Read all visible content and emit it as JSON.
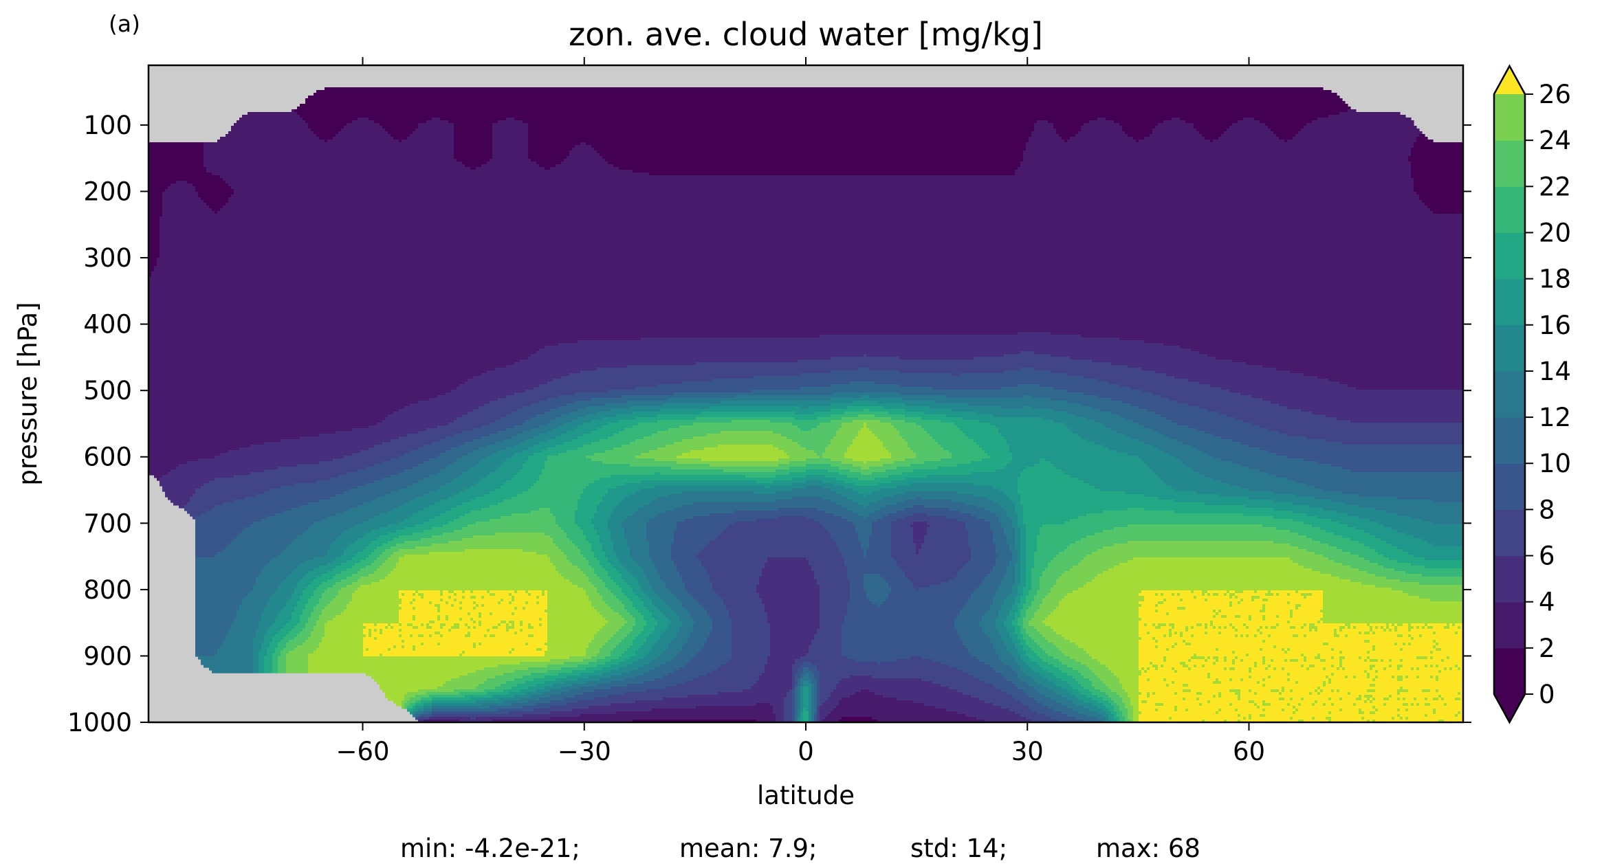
{
  "panel_label": "(a)",
  "chart_data": {
    "type": "heatmap",
    "subtype": "filled-contour",
    "title": "zon. ave. cloud water [mg/kg]",
    "xlabel": "latitude",
    "ylabel": "pressure [hPa]",
    "xlim": [
      -89,
      89
    ],
    "ylim": [
      1000,
      10
    ],
    "x_ticks": [
      -60,
      -30,
      0,
      30,
      60
    ],
    "x_tick_labels": [
      "−60",
      "−30",
      "0",
      "30",
      "60"
    ],
    "y_ticks": [
      100,
      200,
      300,
      400,
      500,
      600,
      700,
      800,
      900,
      1000
    ],
    "y_tick_labels": [
      "100",
      "200",
      "300",
      "400",
      "500",
      "600",
      "700",
      "800",
      "900",
      "1000"
    ],
    "colorbar": {
      "levels": [
        0,
        2,
        4,
        6,
        8,
        10,
        12,
        14,
        16,
        18,
        20,
        22,
        24,
        26
      ],
      "tick_labels": [
        "0",
        "2",
        "4",
        "6",
        "8",
        "10",
        "12",
        "14",
        "16",
        "18",
        "20",
        "22",
        "24",
        "26"
      ],
      "extend": "both",
      "colors": [
        "#440154",
        "#481a6c",
        "#472f7d",
        "#414487",
        "#39568c",
        "#31688e",
        "#2a788e",
        "#23888e",
        "#1f988b",
        "#22a884",
        "#35b779",
        "#54c568",
        "#7ad151",
        "#a5db36",
        "#fde725"
      ],
      "under_color": "#440154",
      "over_color": "#fde725"
    },
    "missing_color": "#cccccc",
    "stats": {
      "min": "min: -4.2e-21;",
      "mean": "mean: 7.9;",
      "std": "std: 14;",
      "max": "max: 68"
    },
    "field": {
      "lat": [
        -89,
        -85,
        -80,
        -75,
        -70,
        -65,
        -60,
        -55,
        -50,
        -45,
        -40,
        -35,
        -30,
        -25,
        -20,
        -15,
        -10,
        -5,
        -2,
        0,
        2,
        5,
        8,
        10,
        15,
        20,
        25,
        28,
        30,
        32,
        35,
        40,
        45,
        50,
        55,
        60,
        65,
        70,
        75,
        80,
        85,
        89
      ],
      "p": [
        30,
        60,
        100,
        150,
        200,
        300,
        400,
        450,
        500,
        550,
        600,
        650,
        700,
        750,
        800,
        850,
        900,
        950,
        1000
      ],
      "values": [
        [
          -1,
          -1,
          -1,
          -1,
          -1,
          -1,
          -1,
          -1,
          -1,
          -1,
          -1,
          -1,
          -1,
          -1,
          -1,
          -1,
          -1,
          -1,
          -1,
          -1,
          -1,
          -1,
          -1,
          -1,
          -1,
          -1,
          -1,
          -1,
          -1,
          -1,
          -1,
          -1,
          -1,
          -1,
          -1,
          -1,
          -1,
          -1,
          -1,
          -1,
          -1,
          -1
        ],
        [
          -1,
          -1,
          -1,
          -1,
          -1,
          0.5,
          0.8,
          0.5,
          0.8,
          0.5,
          0.8,
          0.5,
          0.8,
          0.5,
          0.5,
          0.5,
          0.5,
          0.5,
          0.5,
          0.5,
          0.5,
          0.5,
          0.5,
          0.5,
          0.5,
          0.5,
          0.5,
          0.5,
          0.5,
          0.5,
          0.5,
          0.8,
          0.5,
          0.8,
          0.5,
          0.8,
          0.5,
          0.8,
          -1,
          -1,
          -1,
          -1
        ],
        [
          -1,
          -1,
          -1,
          2.5,
          2.5,
          1.5,
          2.5,
          1.5,
          2.5,
          1.5,
          2.5,
          1.5,
          1.5,
          1,
          1,
          0.5,
          0.5,
          0.5,
          0.5,
          0.5,
          0.5,
          0.5,
          0.5,
          0.5,
          0.5,
          0.5,
          0.5,
          1,
          1.5,
          2.5,
          1.5,
          2.5,
          1.5,
          2.5,
          1.5,
          2.5,
          1.5,
          2.5,
          2.5,
          2.5,
          -1,
          -1
        ],
        [
          1,
          1,
          2.5,
          2.5,
          2.5,
          2.5,
          2.5,
          2.5,
          2.5,
          1.5,
          2.5,
          1.5,
          2.5,
          1.5,
          1,
          1,
          1,
          1,
          1,
          1,
          1,
          1,
          1,
          1,
          1,
          1,
          1,
          1,
          2.5,
          2.5,
          2.5,
          2.5,
          2.5,
          2.5,
          2.5,
          2.5,
          2.5,
          2.5,
          2.5,
          2.5,
          1,
          1
        ],
        [
          1.5,
          2.5,
          1.5,
          2.5,
          3,
          3,
          3,
          3,
          3,
          3,
          3,
          3,
          3,
          3,
          3,
          3,
          3,
          3,
          3,
          3,
          3,
          3,
          3,
          3,
          3,
          3,
          3,
          3,
          3,
          3,
          3,
          3,
          3,
          3,
          3,
          3,
          3,
          3,
          2.5,
          2.5,
          1.5,
          1.5
        ],
        [
          1.5,
          3,
          3,
          3,
          3,
          3,
          3,
          3,
          3,
          3,
          3,
          3,
          3,
          3,
          3,
          3,
          3,
          3,
          3,
          3,
          3,
          3,
          3,
          3,
          3,
          3,
          3,
          3,
          3,
          3,
          3,
          3,
          3,
          3,
          3,
          3,
          3,
          3,
          3,
          3,
          3,
          3
        ],
        [
          3,
          3,
          3,
          3,
          3,
          3,
          3,
          3,
          3,
          3,
          3,
          3,
          3,
          3,
          3,
          3,
          3,
          3,
          3,
          3,
          3,
          3,
          3,
          3,
          3,
          3,
          3,
          3,
          3.3,
          3.3,
          3,
          3,
          3,
          3,
          3,
          3,
          3,
          3,
          3,
          3,
          3,
          3
        ],
        [
          3,
          3,
          3,
          3,
          3,
          3,
          3,
          3,
          3,
          3.2,
          3.5,
          4.5,
          5,
          5.2,
          5.3,
          5.3,
          5.3,
          5.3,
          5.4,
          5.6,
          5.8,
          6,
          6.2,
          6,
          5.8,
          5.8,
          6,
          6.3,
          6.6,
          6.3,
          6,
          5.5,
          5,
          4.5,
          4,
          3.6,
          3.3,
          3.1,
          3,
          3,
          3,
          3
        ],
        [
          3,
          3,
          3,
          3,
          3,
          3,
          3.1,
          3.3,
          3.6,
          4.5,
          5.5,
          6.5,
          7.5,
          8,
          8.5,
          9,
          9.5,
          10,
          10,
          10.5,
          10.5,
          11,
          11.5,
          11,
          10.5,
          10,
          10,
          10.5,
          11,
          10.5,
          10,
          9,
          8,
          7,
          6.3,
          5.6,
          5,
          4.5,
          4,
          4,
          4,
          4
        ],
        [
          3,
          3,
          3,
          3,
          3.1,
          3.3,
          3.6,
          4.5,
          5.5,
          7,
          9,
          12,
          16,
          19,
          21,
          22,
          23,
          23,
          22,
          21,
          22,
          24,
          26,
          25,
          22,
          20,
          18,
          17,
          17,
          17,
          16,
          14,
          12,
          10,
          9,
          8,
          7,
          6.5,
          6,
          6,
          6,
          6
        ],
        [
          3,
          3.6,
          4,
          4.5,
          5,
          5.5,
          6.5,
          8,
          10,
          13,
          16,
          20,
          22,
          23.5,
          25,
          27,
          28,
          28,
          26,
          25,
          24,
          26,
          28,
          27,
          24,
          22,
          20,
          18,
          17,
          18,
          17.5,
          17,
          16,
          14,
          12,
          11,
          10,
          9.5,
          9,
          9,
          9,
          9
        ],
        [
          -1,
          5,
          7,
          7.5,
          8.5,
          9,
          10.5,
          12,
          14,
          16.5,
          19,
          21,
          20,
          17,
          15,
          14,
          14,
          15,
          14,
          13,
          13,
          15,
          17,
          16,
          14,
          14.5,
          15.5,
          17,
          20,
          19,
          18.5,
          18,
          17.5,
          16,
          15,
          14,
          13,
          12,
          11,
          11,
          11,
          11
        ],
        [
          -1,
          -1,
          9,
          10,
          11,
          12.5,
          14,
          16,
          19,
          22,
          23,
          23,
          19,
          14,
          11,
          9,
          8,
          7,
          6,
          7,
          8,
          9,
          11,
          9,
          5.5,
          7,
          10,
          14,
          19,
          20,
          20,
          21,
          22,
          22,
          22,
          22,
          21,
          19,
          17,
          15,
          14,
          14
        ],
        [
          -1,
          -1,
          10,
          11,
          12.5,
          14,
          19,
          26,
          27,
          27,
          27,
          26,
          22,
          15,
          11,
          8,
          7,
          6,
          6,
          6,
          6.5,
          8,
          10,
          9,
          6,
          7,
          9,
          12,
          19,
          21,
          22.5,
          25,
          26,
          26,
          26,
          26,
          26,
          24,
          22,
          19,
          17,
          17
        ],
        [
          -1,
          -1,
          11,
          12,
          15,
          22,
          27,
          28,
          28,
          28,
          28,
          28,
          26,
          20,
          13,
          9,
          7,
          5.5,
          5,
          5.5,
          6,
          7,
          10,
          11,
          8,
          8.5,
          11,
          14,
          19,
          23,
          25.5,
          27,
          28,
          28,
          28,
          28,
          28,
          28,
          27,
          26,
          25,
          25
        ],
        [
          -1,
          -1,
          11,
          13,
          18,
          26,
          28,
          28,
          28,
          28,
          28,
          28,
          28,
          25,
          18,
          12,
          8,
          6,
          5,
          5,
          6,
          8,
          9.5,
          9,
          8.5,
          10,
          13,
          18,
          24,
          26,
          28,
          28,
          28,
          28,
          28,
          28,
          28,
          28,
          28,
          28,
          28,
          28
        ],
        [
          -1,
          -1,
          12,
          14,
          25,
          27,
          28,
          28,
          28,
          28,
          28,
          28,
          26,
          20,
          14,
          10,
          8,
          6,
          5,
          6,
          7,
          8,
          9,
          9,
          8,
          9,
          11,
          14,
          18,
          21,
          24,
          27,
          28,
          28,
          28,
          28,
          28,
          28,
          28,
          28,
          28,
          28
        ],
        [
          -1,
          -1,
          -1,
          -1,
          -1,
          -1,
          -1,
          27,
          26,
          24,
          20,
          15,
          11,
          9,
          8,
          7,
          6.5,
          5.5,
          6,
          18,
          8,
          5,
          4,
          4.5,
          5,
          6,
          7.5,
          9,
          11,
          13,
          16,
          23,
          28,
          28,
          28,
          28,
          28,
          28,
          28,
          28,
          28,
          28
        ],
        [
          -1,
          -1,
          -1,
          -1,
          -1,
          -1,
          -1,
          -1,
          2.5,
          3.5,
          3,
          2.5,
          2,
          1.8,
          1.5,
          1.5,
          1.5,
          2,
          8,
          20,
          4,
          1.5,
          1.5,
          2,
          2.5,
          3,
          4,
          4.5,
          5.5,
          6.5,
          8,
          11,
          28,
          28,
          28,
          28,
          28,
          28,
          28,
          28,
          28,
          28
        ]
      ]
    }
  }
}
